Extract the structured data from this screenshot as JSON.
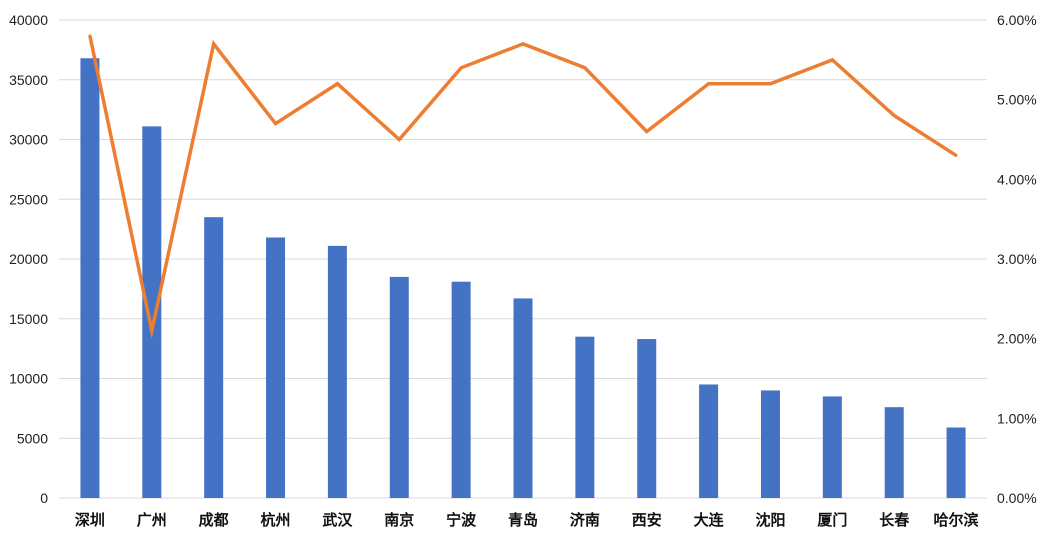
{
  "chart_data": {
    "type": "bar",
    "categories": [
      "深圳",
      "广州",
      "成都",
      "杭州",
      "武汉",
      "南京",
      "宁波",
      "青岛",
      "济南",
      "西安",
      "大连",
      "沈阳",
      "厦门",
      "长春",
      "哈尔滨"
    ],
    "series": [
      {
        "type": "bar",
        "axis": "left",
        "color": "#4472c4",
        "values": [
          36800,
          31100,
          23500,
          21800,
          21100,
          18500,
          18100,
          16700,
          13500,
          13300,
          9500,
          9000,
          8500,
          7600,
          5900
        ]
      },
      {
        "type": "line",
        "axis": "right",
        "color": "#ed7d31",
        "values": [
          5.8,
          2.1,
          5.7,
          4.7,
          5.2,
          4.5,
          5.4,
          5.7,
          5.4,
          4.6,
          5.2,
          5.2,
          5.5,
          4.8,
          4.3
        ]
      }
    ],
    "y_left": {
      "ylim": [
        0,
        40000
      ],
      "ticks": [
        "0",
        "5000",
        "10000",
        "15000",
        "20000",
        "25000",
        "30000",
        "35000",
        "40000"
      ]
    },
    "y_right": {
      "ylim": [
        0,
        6
      ],
      "ticks": [
        "0.00%",
        "1.00%",
        "2.00%",
        "3.00%",
        "4.00%",
        "5.00%",
        "6.00%"
      ]
    },
    "grid": true,
    "legend": "none",
    "gridline_color": "#d9d9d9"
  }
}
